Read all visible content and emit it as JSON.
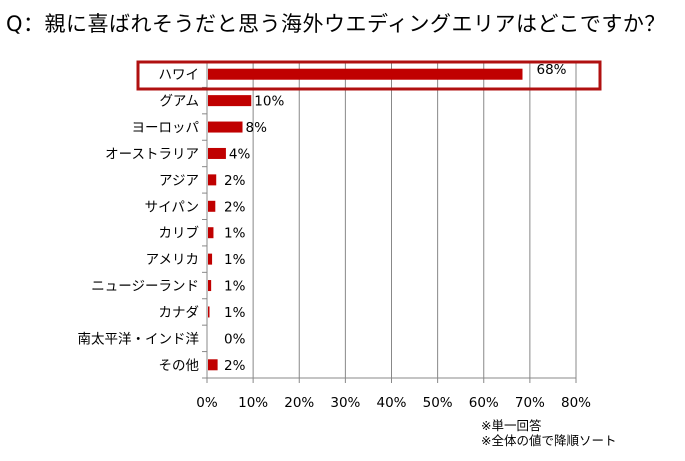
{
  "chart_data": {
    "type": "bar",
    "orientation": "horizontal",
    "title": "Q：親に喜ばれそうだと思う海外ウエディングエリアはどこですか？",
    "categories": [
      "ハワイ",
      "グアム",
      "ヨーロッパ",
      "オーストラリア",
      "アジア",
      "サイパン",
      "カリブ",
      "アメリカ",
      "ニュージーランド",
      "カナダ",
      "南太平洋・インド洋",
      "その他"
    ],
    "values": [
      68.4,
      9.6,
      7.7,
      4.1,
      2.0,
      1.8,
      1.4,
      1.1,
      0.9,
      0.5,
      0.0,
      2.3
    ],
    "data_labels": [
      "68%",
      "10%",
      "8%",
      "4%",
      "2%",
      "2%",
      "1%",
      "1%",
      "1%",
      "1%",
      "0%",
      "2%"
    ],
    "xlim": [
      0,
      80
    ],
    "x_ticks": [
      "0%",
      "10%",
      "20%",
      "30%",
      "40%",
      "50%",
      "60%",
      "70%",
      "80%"
    ],
    "grid": "vertical",
    "highlighted_category": "ハワイ",
    "bar_color": "#c00000",
    "highlight_color": "#b01010",
    "notes": [
      "※単一回答",
      "※全体の値で降順ソート"
    ]
  }
}
